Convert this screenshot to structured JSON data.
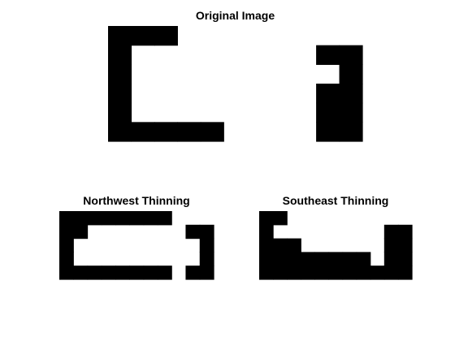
{
  "panels": {
    "original": {
      "title": "Original Image",
      "grid": [
        "11100000000",
        "10000000011",
        "10000000001",
        "10000000011",
        "10000000011",
        "11111000011"
      ]
    },
    "northwest": {
      "title": "Northwest Thinning",
      "grid": [
        "11111111000",
        "11000000011",
        "10000000001",
        "10000000001",
        "11111111011"
      ]
    },
    "southeast": {
      "title": "Southeast Thinning",
      "grid": [
        "11000000000",
        "10000000011",
        "11100000011",
        "11111111011",
        "11111111111"
      ]
    }
  },
  "colors": {
    "pixel_on": "#000000",
    "background": "#ffffff"
  }
}
